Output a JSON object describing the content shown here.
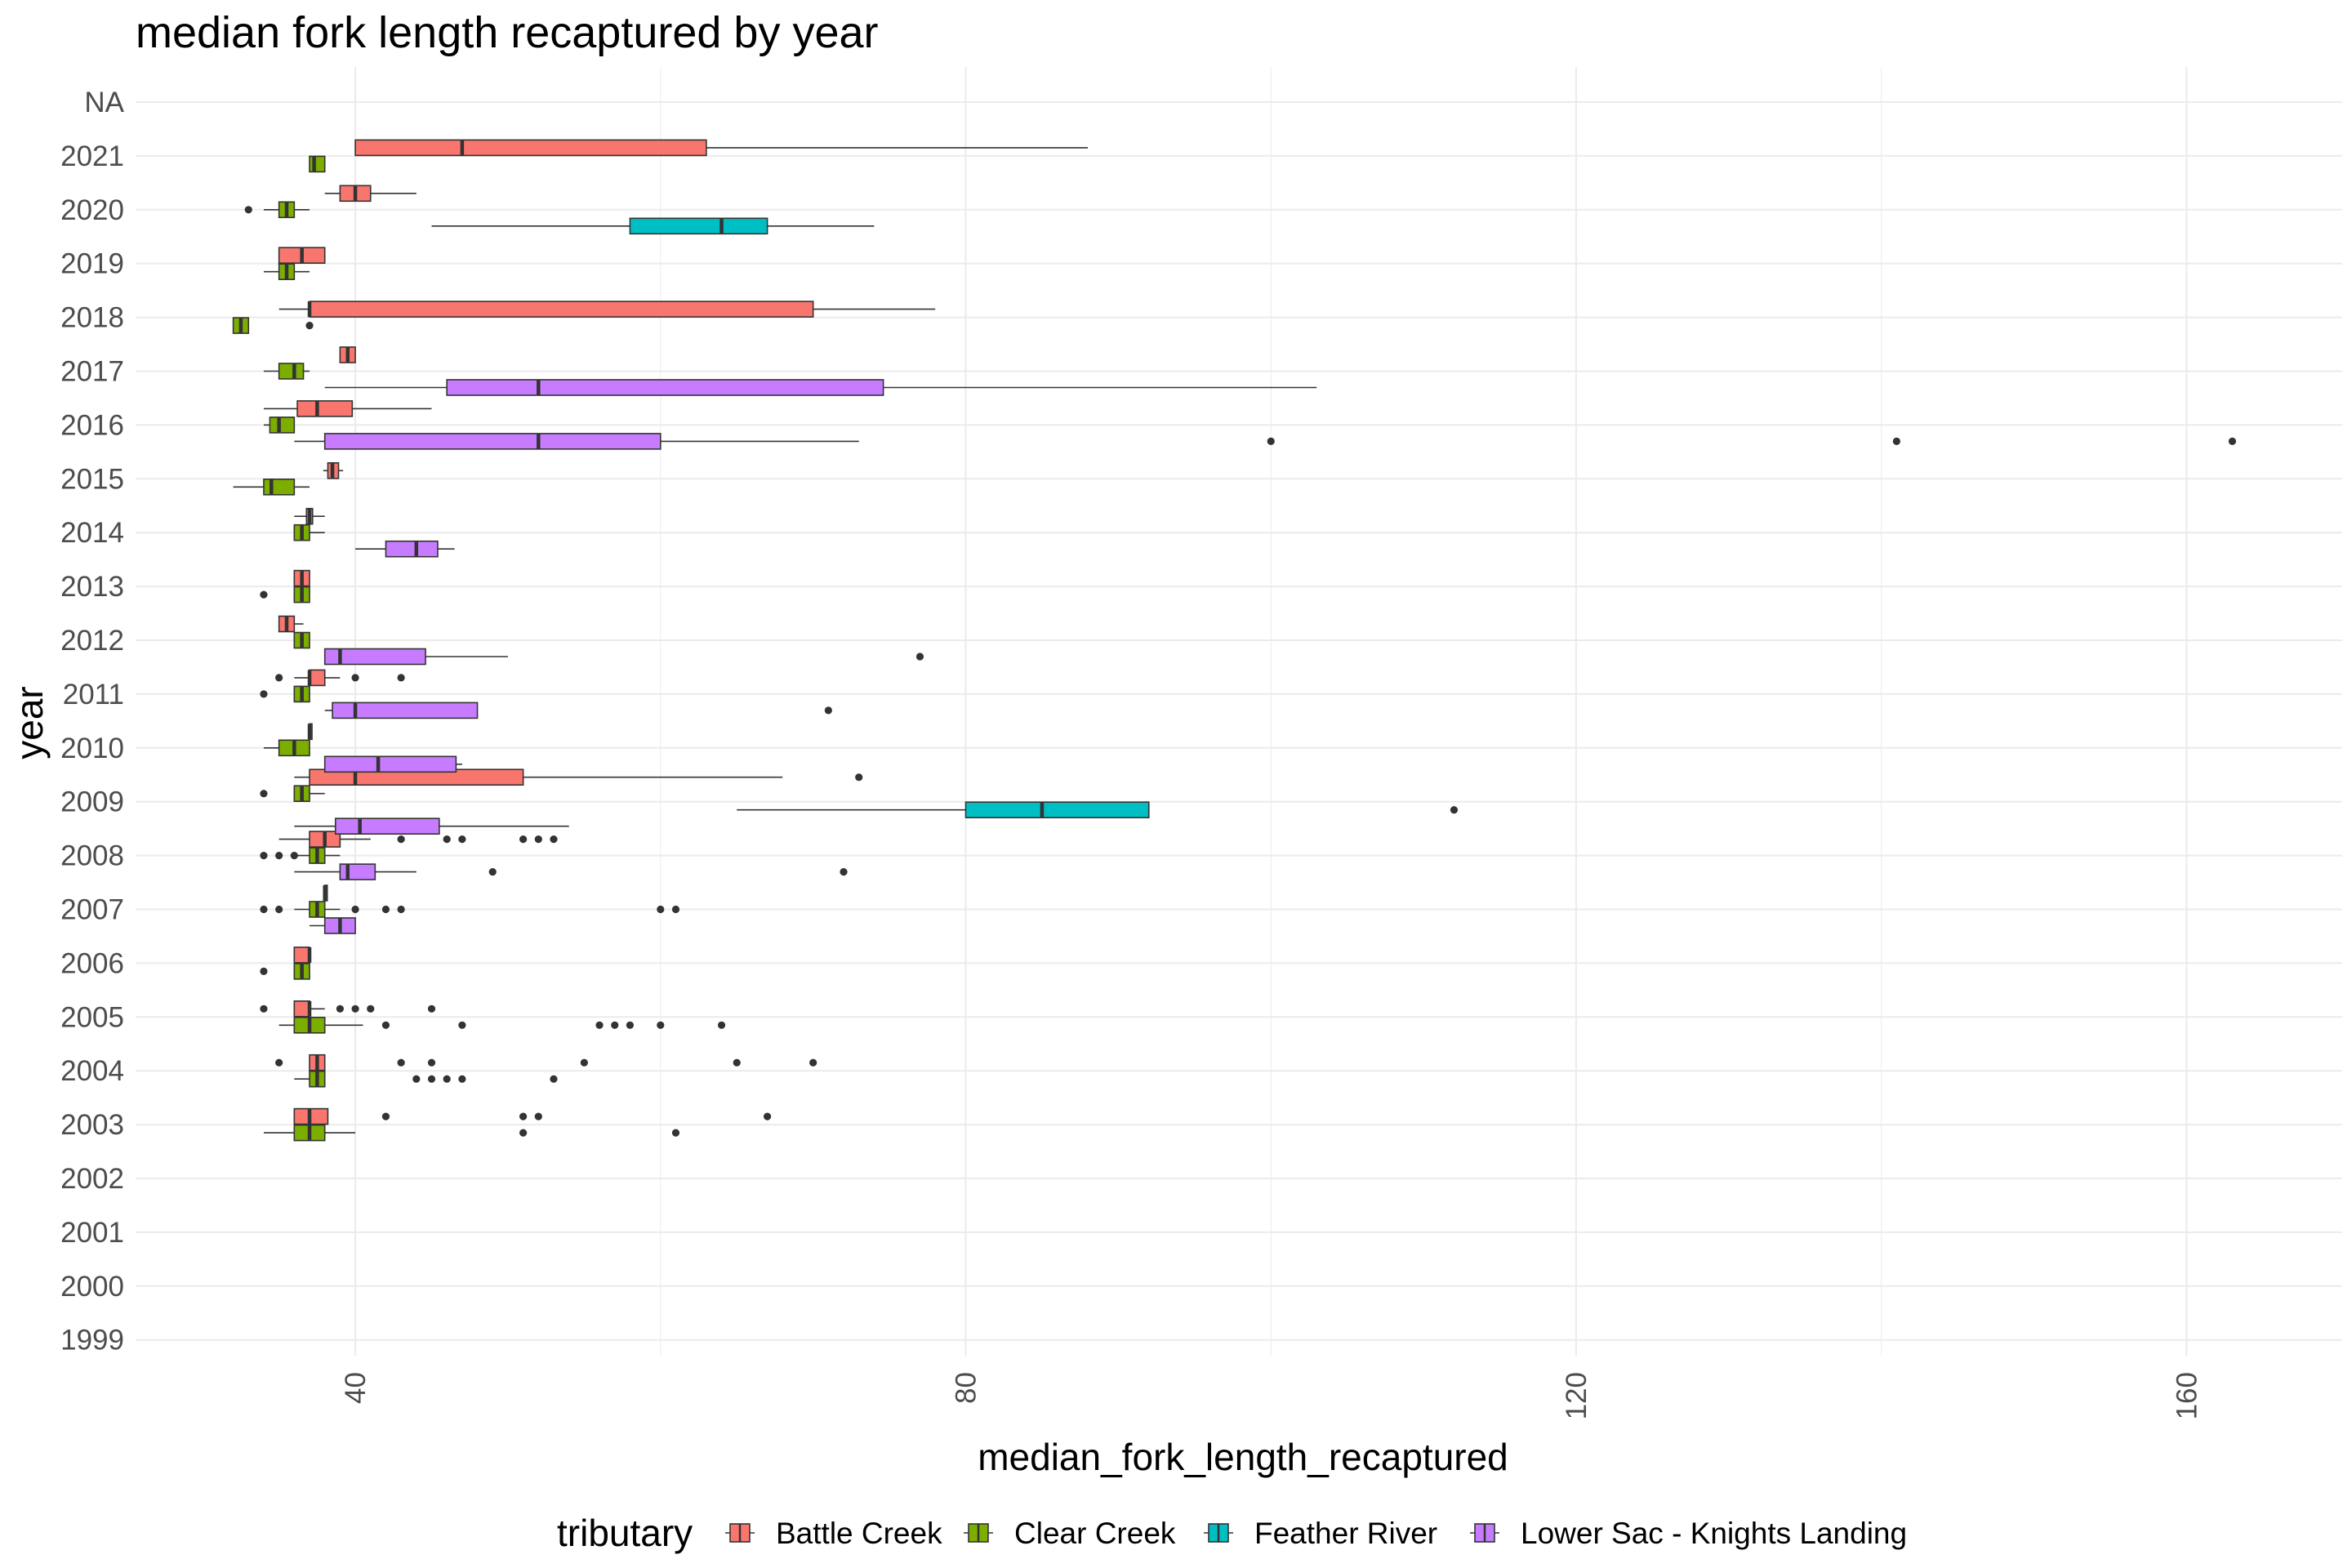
{
  "chart_data": {
    "type": "boxplot",
    "orientation": "horizontal",
    "title": "median fork length recaptured by year",
    "xlabel": "median_fork_length_recaptured",
    "ylabel": "year",
    "xlim": [
      25.6,
      170.2
    ],
    "x_ticks": [
      40,
      80,
      120,
      160
    ],
    "categories": [
      "1999",
      "2000",
      "2001",
      "2002",
      "2003",
      "2004",
      "2005",
      "2006",
      "2007",
      "2008",
      "2009",
      "2010",
      "2011",
      "2012",
      "2013",
      "2014",
      "2015",
      "2016",
      "2017",
      "2018",
      "2019",
      "2020",
      "2021",
      "NA"
    ],
    "grid": true,
    "legend": {
      "title": "tributary",
      "position": "bottom"
    },
    "series": [
      {
        "name": "Battle Creek",
        "color": "#F8766D",
        "boxes": [
          {
            "year": "2003",
            "min": 36,
            "q1": 36,
            "median": 37,
            "q3": 38.2,
            "max": 38.2,
            "outliers": [
              42,
              51,
              52,
              67
            ]
          },
          {
            "year": "2004",
            "min": 37,
            "q1": 37,
            "median": 37.5,
            "q3": 38,
            "max": 38,
            "outliers": [
              35,
              43,
              45,
              55,
              65,
              70
            ]
          },
          {
            "year": "2005",
            "min": 36,
            "q1": 36,
            "median": 37,
            "q3": 37,
            "max": 38,
            "outliers": [
              34,
              39,
              40,
              41,
              45
            ]
          },
          {
            "year": "2006",
            "min": 36,
            "q1": 36,
            "median": 37,
            "q3": 37,
            "max": 37,
            "outliers": []
          },
          {
            "year": "2007",
            "min": 38,
            "q1": 38,
            "median": 38,
            "q3": 38,
            "max": 38,
            "outliers": []
          },
          {
            "year": "2008",
            "min": 35,
            "q1": 37,
            "median": 38,
            "q3": 39,
            "max": 41,
            "outliers": [
              43,
              46,
              47,
              51,
              52,
              53
            ]
          },
          {
            "year": "2009",
            "min": 36,
            "q1": 37,
            "median": 40,
            "q3": 51,
            "max": 68,
            "outliers": [
              73
            ]
          },
          {
            "year": "2010",
            "min": 37,
            "q1": 37,
            "median": 37,
            "q3": 37,
            "max": 37,
            "outliers": []
          },
          {
            "year": "2011",
            "min": 36,
            "q1": 37,
            "median": 37,
            "q3": 38,
            "max": 39,
            "outliers": [
              35,
              40,
              43
            ]
          },
          {
            "year": "2012",
            "min": 35,
            "q1": 35,
            "median": 35.5,
            "q3": 36,
            "max": 36.6,
            "outliers": []
          },
          {
            "year": "2013",
            "min": 36,
            "q1": 36,
            "median": 36.5,
            "q3": 37,
            "max": 37,
            "outliers": []
          },
          {
            "year": "2014",
            "min": 36,
            "q1": 36.8,
            "median": 37,
            "q3": 37.2,
            "max": 38,
            "outliers": []
          },
          {
            "year": "2015",
            "min": 37.9,
            "q1": 38.2,
            "median": 38.5,
            "q3": 38.9,
            "max": 39.2,
            "outliers": []
          },
          {
            "year": "2016",
            "min": 34,
            "q1": 36.2,
            "median": 37.5,
            "q3": 39.8,
            "max": 45,
            "outliers": []
          },
          {
            "year": "2017",
            "min": 39,
            "q1": 39,
            "median": 39.5,
            "q3": 40,
            "max": 40,
            "outliers": []
          },
          {
            "year": "2018",
            "min": 35,
            "q1": 37,
            "median": 37,
            "q3": 70,
            "max": 78,
            "outliers": []
          },
          {
            "year": "2019",
            "min": 35,
            "q1": 35,
            "median": 36.5,
            "q3": 38,
            "max": 38,
            "outliers": []
          },
          {
            "year": "2020",
            "min": 38,
            "q1": 39,
            "median": 40,
            "q3": 41,
            "max": 44,
            "outliers": []
          },
          {
            "year": "2021",
            "min": 40,
            "q1": 40,
            "median": 47,
            "q3": 63,
            "max": 88,
            "outliers": []
          }
        ]
      },
      {
        "name": "Clear Creek",
        "color": "#7CAE00",
        "boxes": [
          {
            "year": "2003",
            "min": 34,
            "q1": 36,
            "median": 37,
            "q3": 38,
            "max": 40,
            "outliers": [
              51,
              61
            ]
          },
          {
            "year": "2004",
            "min": 36,
            "q1": 37,
            "median": 37.5,
            "q3": 38,
            "max": 38,
            "outliers": [
              44,
              45,
              46,
              47,
              53
            ]
          },
          {
            "year": "2005",
            "min": 35,
            "q1": 36,
            "median": 37,
            "q3": 38,
            "max": 40.5,
            "outliers": [
              42,
              47,
              56,
              57,
              58,
              60,
              64
            ]
          },
          {
            "year": "2006",
            "min": 36,
            "q1": 36,
            "median": 36.5,
            "q3": 37,
            "max": 37,
            "outliers": [
              34
            ]
          },
          {
            "year": "2007",
            "min": 36,
            "q1": 37,
            "median": 37.5,
            "q3": 38,
            "max": 39,
            "outliers": [
              34,
              35,
              40,
              42,
              43,
              60,
              61
            ]
          },
          {
            "year": "2008",
            "min": 36,
            "q1": 37,
            "median": 37.5,
            "q3": 38,
            "max": 39,
            "outliers": [
              34,
              35,
              36
            ]
          },
          {
            "year": "2009",
            "min": 36,
            "q1": 36,
            "median": 36.5,
            "q3": 37,
            "max": 38,
            "outliers": [
              34
            ]
          },
          {
            "year": "2010",
            "min": 34,
            "q1": 35,
            "median": 36,
            "q3": 37,
            "max": 37,
            "outliers": []
          },
          {
            "year": "2011",
            "min": 36,
            "q1": 36,
            "median": 36.5,
            "q3": 37,
            "max": 37,
            "outliers": [
              34
            ]
          },
          {
            "year": "2012",
            "min": 36,
            "q1": 36,
            "median": 36.5,
            "q3": 37,
            "max": 37,
            "outliers": []
          },
          {
            "year": "2013",
            "min": 36,
            "q1": 36,
            "median": 36.5,
            "q3": 37,
            "max": 37,
            "outliers": [
              34
            ]
          },
          {
            "year": "2014",
            "min": 36,
            "q1": 36,
            "median": 36.5,
            "q3": 37,
            "max": 38,
            "outliers": []
          },
          {
            "year": "2015",
            "min": 32,
            "q1": 34,
            "median": 34.5,
            "q3": 36,
            "max": 37,
            "outliers": []
          },
          {
            "year": "2016",
            "min": 34,
            "q1": 34.4,
            "median": 35,
            "q3": 36,
            "max": 36,
            "outliers": []
          },
          {
            "year": "2017",
            "min": 34,
            "q1": 35,
            "median": 36,
            "q3": 36.6,
            "max": 37,
            "outliers": []
          },
          {
            "year": "2018",
            "min": 32,
            "q1": 32,
            "median": 32.5,
            "q3": 33,
            "max": 33,
            "outliers": [
              37
            ]
          },
          {
            "year": "2019",
            "min": 34,
            "q1": 35,
            "median": 35.5,
            "q3": 36,
            "max": 37,
            "outliers": []
          },
          {
            "year": "2020",
            "min": 34,
            "q1": 35,
            "median": 35.5,
            "q3": 36,
            "max": 37,
            "outliers": [
              33
            ]
          },
          {
            "year": "2021",
            "min": 37,
            "q1": 37,
            "median": 37.3,
            "q3": 38,
            "max": 38,
            "outliers": []
          }
        ]
      },
      {
        "name": "Feather River",
        "color": "#00BFC4",
        "boxes": [
          {
            "year": "2009",
            "min": 65,
            "q1": 80,
            "median": 85,
            "q3": 92,
            "max": 92,
            "outliers": [
              112
            ]
          },
          {
            "year": "2020",
            "min": 45,
            "q1": 58,
            "median": 64,
            "q3": 67,
            "max": 74,
            "outliers": []
          }
        ]
      },
      {
        "name": "Lower Sac - Knights Landing",
        "color": "#C77CFF",
        "boxes": [
          {
            "year": "2007",
            "min": 37,
            "q1": 38,
            "median": 39,
            "q3": 40,
            "max": 40,
            "outliers": []
          },
          {
            "year": "2008",
            "min": 36,
            "q1": 39,
            "median": 39.5,
            "q3": 41.3,
            "max": 44,
            "outliers": [
              49,
              72
            ]
          },
          {
            "year": "2009",
            "min": 36,
            "q1": 38.7,
            "median": 40.3,
            "q3": 45.5,
            "max": 54,
            "outliers": []
          },
          {
            "year": "2010",
            "min": 38,
            "q1": 38,
            "median": 41.5,
            "q3": 46.6,
            "max": 47,
            "outliers": []
          },
          {
            "year": "2011",
            "min": 38,
            "q1": 38.5,
            "median": 40,
            "q3": 48,
            "max": 48,
            "outliers": [
              71
            ]
          },
          {
            "year": "2012",
            "min": 38,
            "q1": 38,
            "median": 39,
            "q3": 44.6,
            "max": 50,
            "outliers": [
              77
            ]
          },
          {
            "year": "2014",
            "min": 40,
            "q1": 42,
            "median": 44,
            "q3": 45.4,
            "max": 46.5,
            "outliers": []
          },
          {
            "year": "2016",
            "min": 36,
            "q1": 38,
            "median": 52,
            "q3": 60,
            "max": 73,
            "outliers": [
              100,
              141,
              163
            ]
          },
          {
            "year": "2017",
            "min": 38,
            "q1": 46,
            "median": 52,
            "q3": 74.6,
            "max": 103,
            "outliers": []
          }
        ]
      }
    ]
  }
}
